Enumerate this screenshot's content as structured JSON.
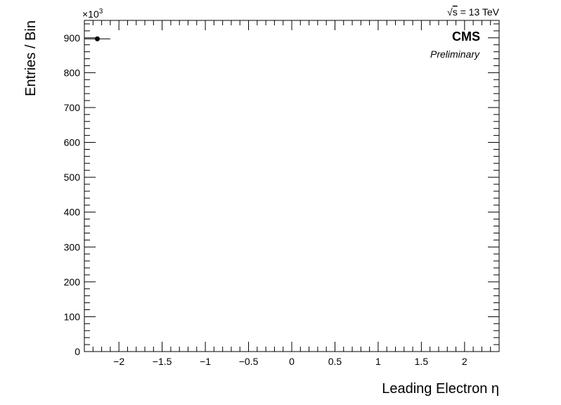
{
  "chart_data": {
    "type": "scatter",
    "xlabel": "Leading Electron η",
    "ylabel": "Entries / Bin",
    "y_multiplier_label": "×10",
    "y_multiplier_exp": "3",
    "energy_label": "= 13 TeV",
    "energy_sqrt_symbol": "√",
    "energy_var": "s",
    "experiment_label": "CMS",
    "status_label": "Preliminary",
    "xlim": [
      -2.4,
      2.4
    ],
    "ylim": [
      0,
      950
    ],
    "x_ticks": [
      -2,
      -1.5,
      -1,
      -0.5,
      0,
      0.5,
      1,
      1.5,
      2
    ],
    "x_tick_labels": [
      "−2",
      "−1.5",
      "−1",
      "−0.5",
      "0",
      "0.5",
      "1",
      "1.5",
      "2"
    ],
    "y_ticks": [
      0,
      100,
      200,
      300,
      400,
      500,
      600,
      700,
      800,
      900
    ],
    "y_tick_labels": [
      "0",
      "100",
      "200",
      "300",
      "400",
      "500",
      "600",
      "700",
      "800",
      "900"
    ],
    "points": [
      {
        "x": -2.25,
        "y": 897,
        "xerr": 0.15
      }
    ],
    "marker_color": "#000000",
    "grid": false,
    "legend": "none"
  }
}
